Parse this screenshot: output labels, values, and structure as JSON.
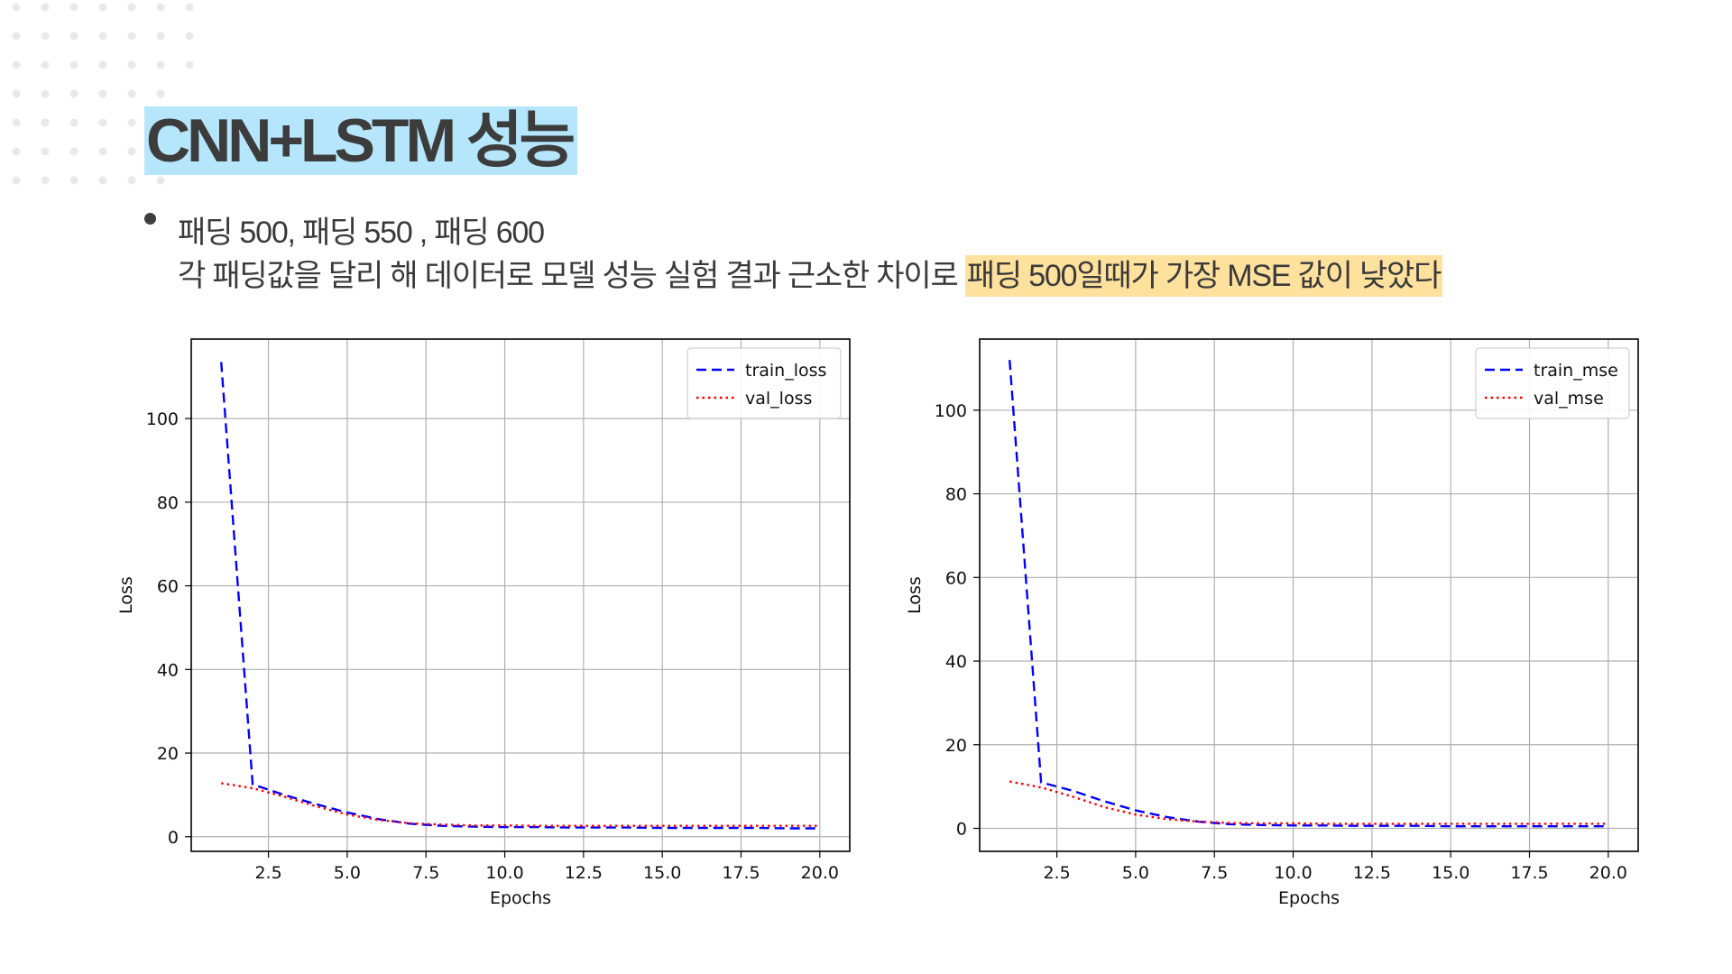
{
  "title": "CNN+LSTM 성능",
  "bullet": {
    "line1": "패딩 500, 패딩 550 , 패딩 600",
    "line2_plain": "각 패딩값을 달리 해 데이터로 모델 성능 실험 결과 근소한 차이로 ",
    "line2_highlight": "패딩 500일때가 가장 MSE 값이 낮았다"
  },
  "colors": {
    "title_bg": "#b6e6fb",
    "highlight": "#ffe19e",
    "train": "#0000ff",
    "val": "#ff0000",
    "grid": "#b0b0b0"
  },
  "chart_data": [
    {
      "type": "line",
      "xlabel": "Epochs",
      "ylabel": "Loss",
      "xlim": [
        0.05,
        20.95
      ],
      "ylim": [
        -3.5,
        119
      ],
      "xticks": [
        "2.5",
        "5.0",
        "7.5",
        "10.0",
        "12.5",
        "15.0",
        "17.5",
        "20.0"
      ],
      "yticks": [
        "0",
        "20",
        "40",
        "60",
        "80",
        "100"
      ],
      "grid": true,
      "legend": "top-right",
      "x": [
        1,
        2,
        3,
        4,
        5,
        6,
        7,
        8,
        9,
        10,
        11,
        12,
        13,
        14,
        15,
        16,
        17,
        18,
        19,
        20
      ],
      "series": [
        {
          "name": "train_loss",
          "style": "dashed",
          "color": "#0000ff",
          "values": [
            113.5,
            12.5,
            10,
            7.8,
            5.8,
            4.2,
            3.1,
            2.6,
            2.4,
            2.3,
            2.3,
            2.2,
            2.2,
            2.2,
            2.1,
            2.1,
            2.1,
            2.1,
            2.0,
            2.0
          ]
        },
        {
          "name": "val_loss",
          "style": "dotted",
          "color": "#ff0000",
          "values": [
            12.8,
            11.6,
            9.6,
            7.3,
            5.3,
            4.0,
            3.2,
            2.9,
            2.7,
            2.7,
            2.6,
            2.6,
            2.6,
            2.6,
            2.6,
            2.6,
            2.6,
            2.6,
            2.6,
            2.6
          ]
        }
      ]
    },
    {
      "type": "line",
      "xlabel": "Epochs",
      "ylabel": "Loss",
      "xlim": [
        0.05,
        20.95
      ],
      "ylim": [
        -5.5,
        117
      ],
      "xticks": [
        "2.5",
        "5.0",
        "7.5",
        "10.0",
        "12.5",
        "15.0",
        "17.5",
        "20.0"
      ],
      "yticks": [
        "0",
        "20",
        "40",
        "60",
        "80",
        "100"
      ],
      "grid": true,
      "legend": "top-right",
      "x": [
        1,
        2,
        3,
        4,
        5,
        6,
        7,
        8,
        9,
        10,
        11,
        12,
        13,
        14,
        15,
        16,
        17,
        18,
        19,
        20
      ],
      "series": [
        {
          "name": "train_mse",
          "style": "dashed",
          "color": "#0000ff",
          "values": [
            112,
            11,
            9,
            6.5,
            4.3,
            2.7,
            1.6,
            1.0,
            0.8,
            0.7,
            0.7,
            0.6,
            0.6,
            0.6,
            0.5,
            0.5,
            0.5,
            0.5,
            0.5,
            0.5
          ]
        },
        {
          "name": "val_mse",
          "style": "dotted",
          "color": "#ff0000",
          "values": [
            11.2,
            9.8,
            7.6,
            5.1,
            3.3,
            2.2,
            1.6,
            1.3,
            1.2,
            1.2,
            1.1,
            1.1,
            1.1,
            1.1,
            1.1,
            1.1,
            1.1,
            1.1,
            1.1,
            1.1
          ]
        }
      ]
    }
  ]
}
